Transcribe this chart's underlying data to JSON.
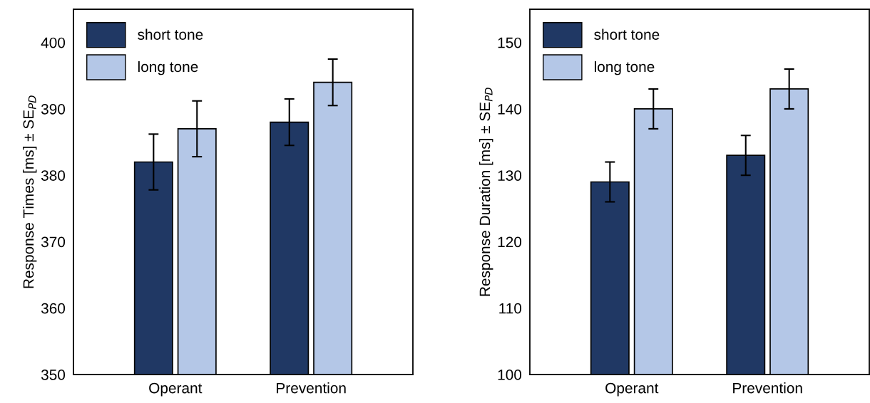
{
  "chart_data": [
    {
      "type": "bar",
      "ylabel": "Response Times [ms] ± SE$_{PD}$",
      "categories": [
        "Operant",
        "Prevention"
      ],
      "ylim": [
        350,
        405
      ],
      "yticks": [
        350,
        360,
        370,
        380,
        390,
        400
      ],
      "legend": "top left",
      "grid": false,
      "series": [
        {
          "name": "short tone",
          "color": "#203864",
          "values": [
            382,
            388
          ],
          "errors": [
            4.2,
            3.5
          ]
        },
        {
          "name": "long tone",
          "color": "#b4c7e7",
          "values": [
            387,
            394
          ],
          "errors": [
            4.2,
            3.5
          ]
        }
      ]
    },
    {
      "type": "bar",
      "ylabel": "Response Duration [ms] ± SE$_{PD}$",
      "categories": [
        "Operant",
        "Prevention"
      ],
      "ylim": [
        100,
        155
      ],
      "yticks": [
        100,
        110,
        120,
        130,
        140,
        150
      ],
      "legend": "top left",
      "grid": false,
      "series": [
        {
          "name": "short tone",
          "color": "#203864",
          "values": [
            129,
            133
          ],
          "errors": [
            3,
            3
          ]
        },
        {
          "name": "long tone",
          "color": "#b4c7e7",
          "values": [
            140,
            143
          ],
          "errors": [
            3,
            3
          ]
        }
      ]
    }
  ]
}
